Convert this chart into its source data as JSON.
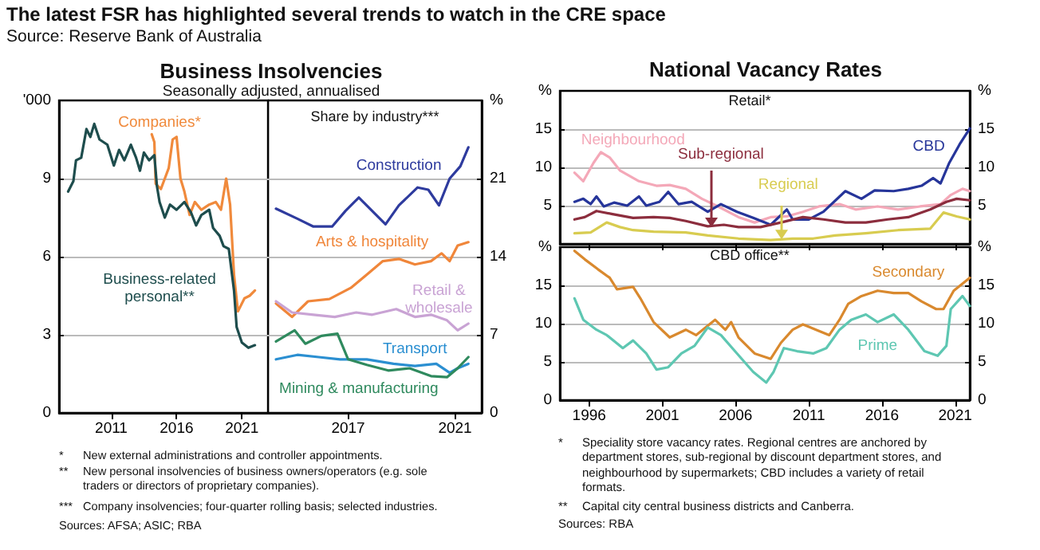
{
  "chart_data": [
    {
      "type": "line",
      "title": "Business Insolvencies",
      "subtitle": "Seasonally adjusted, annualised",
      "ylabel": "'000",
      "xlim": [
        2007,
        2023
      ],
      "xticks": [
        2011,
        2016,
        2021
      ],
      "ylim": [
        0,
        12
      ],
      "yticks": [
        0,
        3,
        6,
        9
      ],
      "grid": "y",
      "annotations": [
        "The latest FSR has highlighted several trends to watch in the CRE space",
        "Source: Reserve Bank of Australia",
        "* New external administrations and controller appointments.",
        "** New personal insolvencies of business owners/operators (e.g. sole traders or directors of proprietary companies).",
        "*** Company insolvencies; four-quarter rolling basis; selected industries.",
        "Sources: AFSA; ASIC; RBA"
      ],
      "series": [
        {
          "name": "Companies*",
          "color": "#f08a3c",
          "x": [
            2014.1,
            2014.3,
            2014.4,
            2014.8,
            2015.1,
            2015.4,
            2015.7,
            2016.0,
            2016.3,
            2016.6,
            2017.0,
            2017.4,
            2017.9,
            2018.5,
            2019.0,
            2019.4,
            2019.8,
            2020.1,
            2020.4,
            2020.7,
            2021.2,
            2021.6,
            2022.0
          ],
          "values": [
            10.7,
            10.4,
            8.8,
            8.6,
            9.0,
            9.4,
            10.5,
            10.6,
            9.0,
            8.5,
            7.6,
            8.1,
            7.8,
            8.0,
            8.1,
            7.8,
            9.0,
            8.0,
            5.3,
            3.9,
            4.4,
            4.5,
            4.7
          ]
        },
        {
          "name": "Business-related personal**",
          "color": "#1e4d4d",
          "x": [
            2007.7,
            2008.1,
            2008.3,
            2008.7,
            2009.1,
            2009.4,
            2009.7,
            2010.1,
            2010.7,
            2011.2,
            2011.6,
            2012.0,
            2012.5,
            2012.9,
            2013.2,
            2013.5,
            2013.9,
            2014.3,
            2014.5,
            2014.7,
            2015.1,
            2015.5,
            2016.0,
            2016.6,
            2017.1,
            2017.5,
            2017.9,
            2018.5,
            2018.8,
            2019.3,
            2019.6,
            2020.0,
            2020.4,
            2020.6,
            2021.0,
            2021.5,
            2022.0
          ],
          "values": [
            8.5,
            8.9,
            9.7,
            9.8,
            10.9,
            10.6,
            11.1,
            10.5,
            10.3,
            9.5,
            10.1,
            9.7,
            10.3,
            9.8,
            9.3,
            10.0,
            9.7,
            9.9,
            8.7,
            8.1,
            7.5,
            8.0,
            7.8,
            8.1,
            7.7,
            7.2,
            7.6,
            7.8,
            7.1,
            6.8,
            6.4,
            6.3,
            4.7,
            3.3,
            2.7,
            2.5,
            2.6
          ]
        }
      ]
    },
    {
      "type": "line",
      "title": "Share by industry***",
      "y2label": "%",
      "xlim": [
        2014,
        2022
      ],
      "xticks": [
        2017,
        2021
      ],
      "y2lim": [
        0,
        28
      ],
      "y2ticks": [
        0,
        7,
        14,
        21
      ],
      "grid": "y",
      "series": [
        {
          "name": "Construction",
          "color": "#2e3b9e",
          "axis": "y2",
          "x": [
            2014.3,
            2015.1,
            2015.7,
            2016.4,
            2016.9,
            2017.4,
            2017.9,
            2018.4,
            2018.9,
            2019.6,
            2020.0,
            2020.4,
            2020.8,
            2021.2,
            2021.5
          ],
          "values": [
            18.3,
            17.4,
            16.7,
            16.7,
            18.1,
            19.3,
            18.1,
            16.9,
            18.6,
            20.2,
            20.0,
            18.6,
            21.0,
            22.1,
            23.8
          ]
        },
        {
          "name": "Arts & hospitality",
          "color": "#f0863a",
          "axis": "y2",
          "x": [
            2014.3,
            2014.9,
            2015.5,
            2016.3,
            2017.1,
            2017.7,
            2018.3,
            2018.9,
            2019.5,
            2020.1,
            2020.5,
            2020.8,
            2021.1,
            2021.5
          ],
          "values": [
            9.8,
            8.6,
            10.0,
            10.2,
            11.2,
            12.4,
            13.6,
            13.8,
            13.3,
            13.6,
            14.3,
            13.6,
            15.0,
            15.3
          ]
        },
        {
          "name": "Retail & wholesale",
          "color": "#c9a3d4",
          "axis": "y2",
          "x": [
            2014.3,
            2014.9,
            2015.7,
            2016.5,
            2017.3,
            2017.9,
            2018.8,
            2019.5,
            2020.1,
            2020.7,
            2021.1,
            2021.5
          ],
          "values": [
            10.0,
            9.0,
            8.8,
            8.6,
            9.0,
            8.8,
            9.3,
            8.6,
            8.8,
            8.3,
            7.4,
            8.0
          ]
        },
        {
          "name": "Transport",
          "color": "#2b8fd1",
          "axis": "y2",
          "x": [
            2014.3,
            2015.1,
            2015.9,
            2016.7,
            2017.7,
            2018.7,
            2019.5,
            2020.3,
            2020.8,
            2021.1,
            2021.5
          ],
          "values": [
            4.8,
            5.2,
            5.0,
            4.8,
            4.8,
            4.4,
            4.2,
            4.4,
            3.6,
            4.0,
            4.4
          ]
        },
        {
          "name": "Mining & manufacturing",
          "color": "#2f8a5e",
          "axis": "y2",
          "x": [
            2014.3,
            2015.0,
            2015.4,
            2016.0,
            2016.6,
            2017.0,
            2017.7,
            2018.5,
            2019.3,
            2020.1,
            2020.7,
            2021.1,
            2021.5
          ],
          "values": [
            6.4,
            7.4,
            6.2,
            6.9,
            7.1,
            4.8,
            4.3,
            3.8,
            4.0,
            3.3,
            3.2,
            4.0,
            5.0
          ]
        }
      ]
    },
    {
      "type": "line",
      "title": "National Vacancy Rates",
      "subtitle": "Retail*",
      "ylabel": "%",
      "y2label": "%",
      "xlim": [
        1994,
        2022
      ],
      "xticks": [
        1996,
        2001,
        2006,
        2011,
        2016,
        2021
      ],
      "ylim": [
        0,
        20
      ],
      "yticks": [
        5,
        10,
        15
      ],
      "y2lim": [
        0,
        20
      ],
      "y2ticks": [
        5,
        10,
        15
      ],
      "grid": "y",
      "tick_labels": "y",
      "annotations": [
        "* Speciality store vacancy rates. Regional centres are anchored by department stores, sub-regional by discount department stores, and neighbourhood by supermarkets; CBD includes a variety of retail formats.",
        "** Capital city central business districts and Canberra.",
        "Sources: RBA"
      ],
      "series": [
        {
          "name": "Neighbourhood",
          "color": "#f4a8b8",
          "x": [
            1995.0,
            1995.6,
            1996.3,
            1996.8,
            1997.4,
            1998.1,
            1999.4,
            2000.6,
            2001.5,
            2002.6,
            2003.7,
            2004.8,
            2006.2,
            2007.3,
            2008.4,
            2009.5,
            2010.6,
            2011.7,
            2013.1,
            2014.2,
            2015.7,
            2017.1,
            2018.6,
            2020.0,
            2020.7,
            2021.5,
            2022.0
          ],
          "values": [
            9.3,
            8.2,
            10.6,
            12.0,
            11.3,
            9.6,
            8.2,
            7.6,
            7.7,
            7.2,
            5.9,
            4.9,
            3.5,
            2.8,
            3.5,
            3.6,
            4.2,
            4.9,
            5.2,
            4.5,
            4.9,
            4.5,
            4.9,
            5.2,
            6.4,
            7.2,
            6.9
          ]
        },
        {
          "name": "CBD",
          "color": "#26359a",
          "x": [
            1995.0,
            1995.6,
            1996.1,
            1996.5,
            1997.0,
            1997.7,
            1998.6,
            1999.4,
            1999.9,
            2000.8,
            2001.4,
            2002.1,
            2003.0,
            2004.1,
            2005.0,
            2006.1,
            2007.2,
            2008.4,
            2009.5,
            2009.9,
            2011.0,
            2012.0,
            2013.5,
            2014.6,
            2015.5,
            2016.8,
            2017.8,
            2018.7,
            2019.5,
            2020.0,
            2020.6,
            2021.3,
            2022.0
          ],
          "values": [
            5.5,
            5.9,
            5.2,
            6.2,
            4.9,
            5.4,
            5.0,
            6.2,
            5.0,
            5.5,
            6.8,
            5.2,
            5.5,
            4.2,
            5.2,
            4.2,
            3.4,
            2.5,
            4.5,
            3.2,
            3.2,
            4.2,
            6.9,
            5.9,
            7.0,
            6.9,
            7.2,
            7.6,
            8.6,
            7.9,
            10.6,
            13.0,
            15.1
          ]
        },
        {
          "name": "Sub-regional",
          "color": "#8c2d3d",
          "x": [
            1995.0,
            1995.7,
            1996.5,
            1997.6,
            1999.0,
            2000.4,
            2001.5,
            2002.6,
            2004.1,
            2005.2,
            2006.2,
            2007.7,
            2009.1,
            2010.6,
            2012.0,
            2013.5,
            2014.9,
            2016.4,
            2017.8,
            2019.3,
            2020.4,
            2021.1,
            2022.0
          ],
          "values": [
            3.2,
            3.5,
            4.3,
            3.9,
            3.4,
            3.5,
            3.4,
            3.0,
            2.3,
            2.5,
            2.2,
            2.2,
            2.8,
            3.5,
            3.2,
            2.8,
            2.8,
            3.2,
            3.5,
            4.5,
            5.5,
            5.9,
            5.7
          ]
        },
        {
          "name": "Regional",
          "color": "#d8cc50",
          "x": [
            1995.0,
            1996.1,
            1997.2,
            1998.1,
            1999.0,
            2000.4,
            2002.6,
            2004.1,
            2006.2,
            2008.4,
            2009.9,
            2011.3,
            2012.8,
            2014.9,
            2017.1,
            2019.3,
            2020.2,
            2021.1,
            2022.0
          ],
          "values": [
            1.4,
            1.5,
            2.8,
            2.2,
            1.8,
            1.6,
            1.5,
            1.1,
            0.7,
            0.5,
            0.7,
            0.7,
            1.1,
            1.4,
            1.8,
            2.0,
            4.1,
            3.6,
            3.2
          ]
        }
      ]
    },
    {
      "type": "line",
      "title": "CBD office**",
      "ylabel": "%",
      "y2label": "%",
      "xlim": [
        1994,
        2022
      ],
      "xticks": [
        1996,
        2001,
        2006,
        2011,
        2016,
        2021
      ],
      "ylim": [
        0,
        20
      ],
      "yticks": [
        0,
        5,
        10,
        15
      ],
      "y2lim": [
        0,
        20
      ],
      "y2ticks": [
        0,
        5,
        10,
        15
      ],
      "grid": "y",
      "series": [
        {
          "name": "Secondary",
          "color": "#d9892e",
          "x": [
            1995.0,
            1995.7,
            1996.6,
            1997.4,
            1997.9,
            1999.0,
            1999.5,
            2000.4,
            2001.5,
            2002.6,
            2003.3,
            2004.6,
            2005.3,
            2005.7,
            2006.2,
            2007.3,
            2008.4,
            2009.1,
            2009.9,
            2010.6,
            2011.5,
            2012.4,
            2013.1,
            2013.7,
            2014.6,
            2015.7,
            2016.8,
            2017.8,
            2018.7,
            2019.7,
            2020.2,
            2020.9,
            2022.0
          ],
          "values": [
            19.5,
            18.4,
            17.1,
            16.0,
            14.5,
            14.8,
            13.3,
            10.2,
            8.2,
            9.2,
            8.5,
            10.5,
            9.2,
            10.2,
            8.2,
            6.1,
            5.4,
            7.5,
            9.2,
            9.9,
            9.2,
            8.5,
            10.5,
            12.6,
            13.6,
            14.3,
            14.0,
            14.0,
            12.9,
            11.9,
            11.9,
            14.3,
            16.0
          ]
        },
        {
          "name": "Prime",
          "color": "#5ec7b2",
          "x": [
            1995.0,
            1995.6,
            1996.5,
            1997.2,
            1998.3,
            1999.0,
            1999.9,
            2000.6,
            2001.4,
            2002.3,
            2003.2,
            2004.1,
            2005.0,
            2006.1,
            2007.2,
            2008.1,
            2008.6,
            2009.3,
            2010.2,
            2011.3,
            2012.2,
            2013.1,
            2013.9,
            2014.9,
            2015.7,
            2016.8,
            2017.8,
            2018.9,
            2019.8,
            2020.4,
            2020.7,
            2021.5,
            2022.0
          ],
          "values": [
            13.3,
            10.5,
            9.2,
            8.5,
            6.8,
            7.8,
            6.1,
            4.0,
            4.3,
            6.1,
            7.1,
            9.5,
            8.5,
            6.1,
            3.7,
            2.3,
            3.7,
            6.8,
            6.4,
            6.1,
            6.8,
            9.2,
            10.5,
            11.2,
            10.2,
            11.2,
            9.2,
            6.4,
            5.8,
            7.1,
            11.9,
            13.6,
            12.3
          ]
        }
      ]
    }
  ]
}
